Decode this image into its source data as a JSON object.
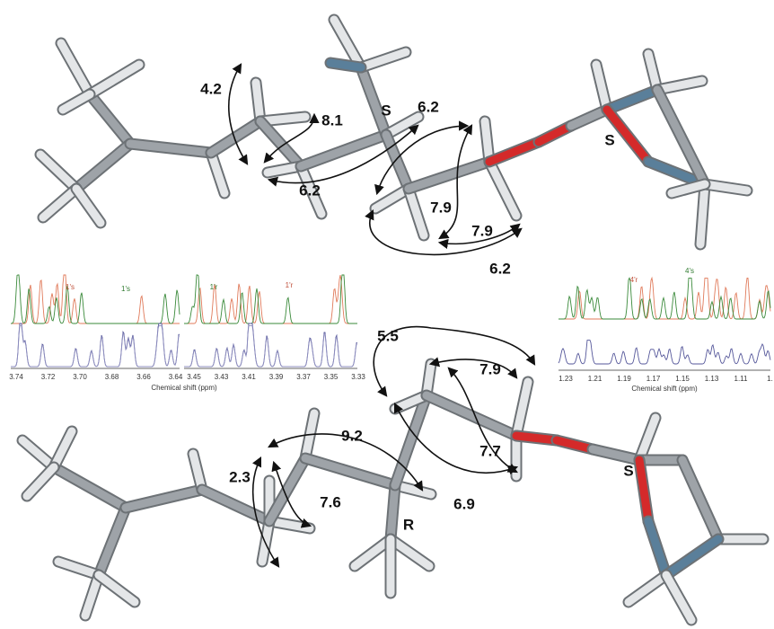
{
  "top_molecule": {
    "couplings": [
      "4.2",
      "8.1",
      "6.2",
      "6.2",
      "7.9",
      "7.9",
      "6.2"
    ],
    "stereo": [
      "S",
      "S"
    ]
  },
  "bottom_molecule": {
    "couplings": [
      "5.5",
      "7.9",
      "9.2",
      "2.3",
      "7.6",
      "7.7",
      "6.9"
    ],
    "stereo": [
      "R",
      "S"
    ]
  },
  "spectrum_left": {
    "peak_labels": [
      "1's",
      "1's",
      "1'r",
      "1'r"
    ],
    "x_ticks_a": [
      "3.74",
      "3.72",
      "3.70",
      "3.68",
      "3.66",
      "3.64"
    ],
    "x_ticks_b": [
      "3.45",
      "3.43",
      "3.41",
      "3.39",
      "3.37",
      "3.35",
      "3.33"
    ],
    "x_label": "Chemical shift (ppm)"
  },
  "spectrum_right": {
    "peak_labels": [
      "4'r",
      "4's"
    ],
    "x_ticks": [
      "1.23",
      "1.21",
      "1.19",
      "1.17",
      "1.15",
      "1.13",
      "1.11",
      "1."
    ],
    "x_label": "Chemical shift (ppm)"
  }
}
